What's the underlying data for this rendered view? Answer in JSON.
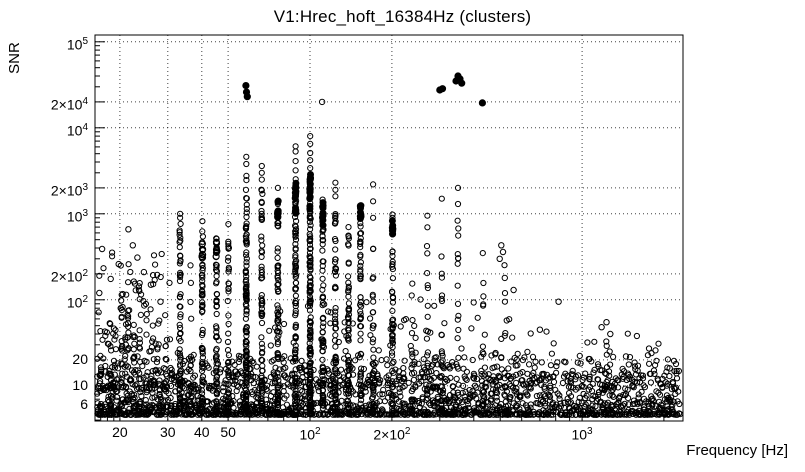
{
  "chart_data": {
    "type": "scatter",
    "title": "V1:Hrec_hoft_16384Hz (clusters)",
    "xlabel": "Frequency [Hz]",
    "ylabel": "SNR",
    "xscale": "log",
    "yscale": "log",
    "xlim": [
      16.2,
      2350
    ],
    "ylim": [
      3.9,
      120000
    ],
    "grid": "dotted",
    "legend": "none",
    "marker": "open-circle",
    "marker_color": "#000000",
    "background": "#ffffff",
    "seed": 20240509,
    "frame": {
      "l": 95,
      "t": 35,
      "r": 683,
      "b": 421
    },
    "x_ticks": [
      {
        "v": 20,
        "label": "20"
      },
      {
        "v": 30,
        "label": "30"
      },
      {
        "v": 40,
        "label": "40"
      },
      {
        "v": 50,
        "label": "50"
      },
      {
        "v": 100,
        "label": "10^2"
      },
      {
        "v": 200,
        "label": "2×10^2"
      },
      {
        "v": 1000,
        "label": "10^3"
      }
    ],
    "y_ticks": [
      {
        "v": 6,
        "label": "6"
      },
      {
        "v": 10,
        "label": "10"
      },
      {
        "v": 20,
        "label": "20"
      },
      {
        "v": 100,
        "label": "10^2"
      },
      {
        "v": 200,
        "label": "2×10^2"
      },
      {
        "v": 1000,
        "label": "10^3"
      },
      {
        "v": 2000,
        "label": "2×10^3"
      },
      {
        "v": 10000,
        "label": "10^4"
      },
      {
        "v": 20000,
        "label": "2×10^4"
      },
      {
        "v": 100000,
        "label": "10^5"
      }
    ],
    "x_grid": [
      20,
      30,
      40,
      50,
      100,
      200,
      1000
    ],
    "y_grid": [
      10,
      20,
      100,
      200,
      1000,
      2000,
      10000,
      20000,
      100000
    ],
    "x_minor_ticks": [
      17,
      18,
      19,
      60,
      70,
      80,
      90,
      300,
      400,
      500,
      600,
      700,
      800,
      900,
      2000
    ],
    "y_minor_ticks": [
      4,
      5,
      7,
      8,
      9,
      30,
      40,
      50,
      60,
      70,
      80,
      90,
      300,
      400,
      500,
      600,
      700,
      800,
      900,
      3000,
      4000,
      5000,
      6000,
      7000,
      8000,
      9000,
      30000,
      40000,
      50000,
      60000,
      70000,
      80000,
      90000
    ],
    "bands": [
      {
        "name": "noise-floor",
        "fmin": 16.2,
        "fmax": 2300,
        "n": 1700,
        "base": 4.6,
        "pow": 2.6,
        "span": 0.48
      },
      {
        "name": "floor-top",
        "fmin": 16.2,
        "fmax": 2300,
        "n": 260,
        "base": 9.5,
        "pow": 1.8,
        "span": 0.36
      },
      {
        "name": "mid-sparse",
        "fmin": 16.2,
        "fmax": 2300,
        "n": 130,
        "base": 14,
        "pow": 2.1,
        "span": 0.5
      },
      {
        "name": "low-freq-excess",
        "fmin": 16.2,
        "fmax": 31,
        "n": 110,
        "base": 9,
        "pow": 1.7,
        "span": 1.6
      },
      {
        "name": "mid-between",
        "fmin": 55,
        "fmax": 210,
        "n": 45,
        "base": 15,
        "pow": 2.0,
        "span": 0.9
      },
      {
        "name": "upper-sparse",
        "fmin": 210,
        "fmax": 620,
        "n": 40,
        "base": 12,
        "pow": 1.8,
        "span": 1.1
      },
      {
        "name": "hf-sparse",
        "fmin": 620,
        "fmax": 2300,
        "n": 22,
        "base": 9,
        "pow": 2.0,
        "span": 0.45
      }
    ],
    "columns": [
      {
        "f": 17.0,
        "top": 45,
        "n": 12
      },
      {
        "f": 18.5,
        "top": 60,
        "n": 12
      },
      {
        "f": 20.3,
        "top": 120,
        "n": 14
      },
      {
        "f": 21.4,
        "top": 80,
        "n": 12
      },
      {
        "f": 22.5,
        "top": 65,
        "n": 10
      },
      {
        "f": 23.6,
        "top": 150,
        "n": 12
      },
      {
        "f": 25.0,
        "top": 90,
        "n": 10
      },
      {
        "f": 26.4,
        "top": 55,
        "n": 8
      },
      {
        "f": 28.0,
        "top": 40,
        "n": 8
      },
      {
        "f": 29.5,
        "top": 35,
        "n": 7
      },
      {
        "f": 31.0,
        "top": 28,
        "n": 6
      },
      {
        "f": 33.3,
        "top": 800,
        "n": 58,
        "opens": [
          1000,
          900
        ]
      },
      {
        "f": 36.5,
        "top": 260,
        "n": 12
      },
      {
        "f": 40.2,
        "top": 700,
        "n": 62,
        "opens": [
          820
        ],
        "blob": {
          "lo": 260,
          "hi": 450,
          "n": 10,
          "filled": false
        }
      },
      {
        "f": 45.3,
        "top": 520,
        "n": 52,
        "blob": {
          "lo": 300,
          "hi": 480,
          "n": 9,
          "filled": false
        }
      },
      {
        "f": 50.1,
        "top": 640,
        "n": 44,
        "opens": [
          760
        ]
      },
      {
        "f": 58.3,
        "top": 3000,
        "n": 118,
        "opens": [
          3800,
          4600
        ]
      },
      {
        "f": 66.5,
        "top": 2100,
        "n": 66,
        "opens": [
          2500,
          3000,
          3600
        ]
      },
      {
        "f": 76.2,
        "top": 1750,
        "n": 72,
        "opens": [
          2000
        ],
        "blob": {
          "lo": 900,
          "hi": 1600,
          "n": 11,
          "filled": true
        }
      },
      {
        "f": 88.5,
        "top": 2600,
        "n": 88,
        "opens": [
          3200,
          4100,
          5300,
          6100
        ],
        "blob": {
          "lo": 1000,
          "hi": 2300,
          "n": 13,
          "filled": true
        }
      },
      {
        "f": 100.1,
        "top": 3000,
        "n": 135,
        "opens": [
          3400,
          4200,
          5100,
          6500,
          8000
        ],
        "blob": {
          "lo": 1000,
          "hi": 2900,
          "n": 15,
          "filled": true
        }
      },
      {
        "f": 111.5,
        "top": 1550,
        "n": 70,
        "blob": {
          "lo": 700,
          "hi": 1400,
          "n": 11,
          "filled": true
        }
      },
      {
        "f": 124.0,
        "top": 1300,
        "n": 62,
        "opens": [
          2300,
          1900,
          1600
        ]
      },
      {
        "f": 138.5,
        "top": 560,
        "n": 52,
        "opens": [
          700
        ]
      },
      {
        "f": 153.5,
        "top": 800,
        "n": 50,
        "blob": {
          "lo": 880,
          "hi": 1280,
          "n": 8,
          "filled": true
        }
      },
      {
        "f": 170.5,
        "top": 420,
        "n": 30,
        "opens": [
          2200,
          1400,
          900
        ]
      },
      {
        "f": 201.0,
        "top": 520,
        "n": 42,
        "opens": [
          980,
          900
        ],
        "blob": {
          "lo": 560,
          "hi": 880,
          "n": 8,
          "filled": true
        }
      },
      {
        "f": 237.0,
        "top": 260,
        "n": 14
      },
      {
        "f": 270.0,
        "top": 880,
        "n": 22,
        "opens": [
          950
        ]
      },
      {
        "f": 305.0,
        "top": 750,
        "n": 16,
        "opens": [
          1500
        ]
      },
      {
        "f": 350.0,
        "top": 850,
        "n": 15,
        "opens": [
          2000,
          1300
        ]
      },
      {
        "f": 432.0,
        "top": 560,
        "n": 12
      },
      {
        "f": 520.0,
        "top": 300,
        "n": 9
      },
      {
        "f": 1230.0,
        "top": 40,
        "n": 8
      }
    ],
    "singles": [
      {
        "f": 58.1,
        "snr": 31000,
        "filled": true
      },
      {
        "f": 58.4,
        "snr": 26000,
        "filled": true
      },
      {
        "f": 58.8,
        "snr": 23000,
        "filled": true
      },
      {
        "f": 300,
        "snr": 27500,
        "filled": true
      },
      {
        "f": 307,
        "snr": 28500,
        "filled": true
      },
      {
        "f": 344,
        "snr": 35000,
        "filled": true
      },
      {
        "f": 350,
        "snr": 40000,
        "filled": true
      },
      {
        "f": 356,
        "snr": 37000,
        "filled": true
      },
      {
        "f": 361,
        "snr": 33000,
        "filled": true
      },
      {
        "f": 430,
        "snr": 19500,
        "filled": true
      },
      {
        "f": 110.8,
        "snr": 20000,
        "filled": false
      },
      {
        "f": 17.2,
        "snr": 390,
        "filled": false
      },
      {
        "f": 21.5,
        "snr": 660,
        "filled": false
      },
      {
        "f": 22.3,
        "snr": 430,
        "filled": false
      },
      {
        "f": 19.8,
        "snr": 260,
        "filled": false
      },
      {
        "f": 24.5,
        "snr": 210,
        "filled": false
      },
      {
        "f": 26.0,
        "snr": 150,
        "filled": false
      },
      {
        "f": 18.5,
        "snr": 175,
        "filled": false
      },
      {
        "f": 16.8,
        "snr": 120,
        "filled": false
      },
      {
        "f": 28.2,
        "snr": 95,
        "filled": false
      },
      {
        "f": 23.2,
        "snr": 310,
        "filled": false
      },
      {
        "f": 505,
        "snr": 430,
        "filled": false
      },
      {
        "f": 512,
        "snr": 360,
        "filled": false
      },
      {
        "f": 498,
        "snr": 300,
        "filled": false
      },
      {
        "f": 520,
        "snr": 180,
        "filled": false
      },
      {
        "f": 560,
        "snr": 130,
        "filled": false
      },
      {
        "f": 700,
        "snr": 45,
        "filled": false
      },
      {
        "f": 820,
        "snr": 95,
        "filled": false
      },
      {
        "f": 1180,
        "snr": 48,
        "filled": false
      },
      {
        "f": 1230,
        "snr": 55,
        "filled": false
      },
      {
        "f": 1270,
        "snr": 40,
        "filled": false
      },
      {
        "f": 1450,
        "snr": 22,
        "filled": false
      },
      {
        "f": 2100,
        "snr": 16,
        "filled": false
      }
    ]
  }
}
